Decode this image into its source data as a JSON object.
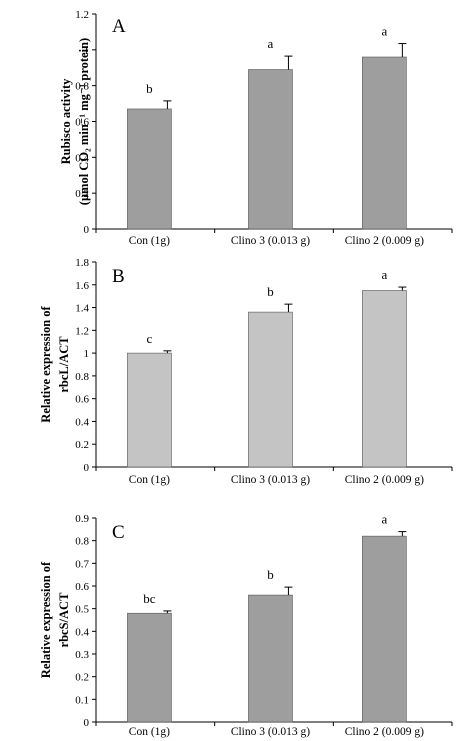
{
  "chart_data": [
    {
      "type": "bar",
      "panel_label": "A",
      "categories": [
        "Con (1g)",
        "Clino 3 (0.013 g)",
        "Clino 2 (0.009 g)"
      ],
      "values": [
        0.67,
        0.89,
        0.96
      ],
      "errors": [
        0.045,
        0.075,
        0.075
      ],
      "significance": [
        "b",
        "a",
        "a"
      ],
      "ylabel_lines": [
        "Rubisco activity",
        "(μmol CO₂ min⁻¹ mg⁻¹ protein)"
      ],
      "ylim": [
        0,
        1.2
      ],
      "yticks": [
        0,
        0.2,
        0.4,
        0.6,
        0.8,
        1,
        1.2
      ],
      "bar_color": "#9e9e9e"
    },
    {
      "type": "bar",
      "panel_label": "B",
      "categories": [
        "Con (1g)",
        "Clino 3 (0.013 g)",
        "Clino 2 (0.009 g)"
      ],
      "values": [
        1.0,
        1.36,
        1.55
      ],
      "errors": [
        0.02,
        0.07,
        0.03
      ],
      "significance": [
        "c",
        "b",
        "a"
      ],
      "ylabel_lines": [
        "Relative expression of",
        "rbcL/ACT"
      ],
      "ylim": [
        0,
        1.8
      ],
      "yticks": [
        0,
        0.2,
        0.4,
        0.6,
        0.8,
        1,
        1.2,
        1.4,
        1.6,
        1.8
      ],
      "bar_color": "#c4c4c4"
    },
    {
      "type": "bar",
      "panel_label": "C",
      "categories": [
        "Con (1g)",
        "Clino 3 (0.013 g)",
        "Clino 2 (0.009 g)"
      ],
      "values": [
        0.48,
        0.56,
        0.82
      ],
      "errors": [
        0.01,
        0.035,
        0.02
      ],
      "significance": [
        "bc",
        "b",
        "a"
      ],
      "ylabel_lines": [
        "Relative expression of",
        "rbcS/ACT"
      ],
      "ylim": [
        0,
        0.9
      ],
      "yticks": [
        0,
        0.1,
        0.2,
        0.3,
        0.4,
        0.5,
        0.6,
        0.7,
        0.8,
        0.9
      ],
      "bar_color": "#9e9e9e"
    }
  ]
}
